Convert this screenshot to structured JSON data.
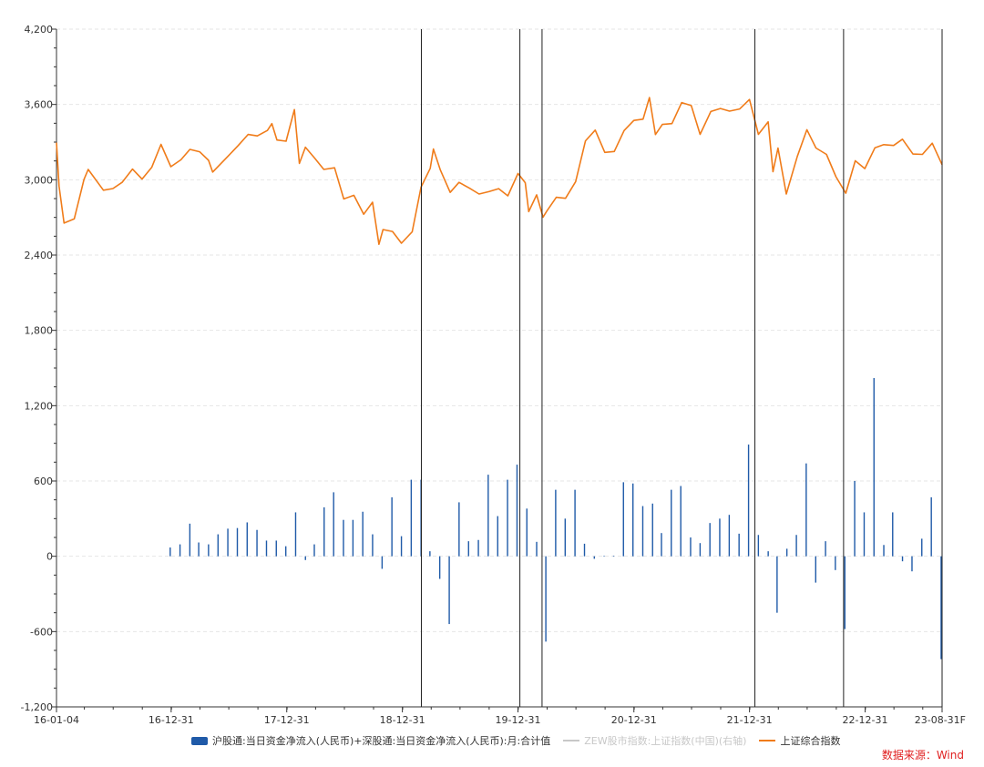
{
  "chart_data": {
    "type": "bar+line",
    "x_ticks": [
      "16-01-04",
      "16-12-31",
      "17-12-31",
      "18-12-31",
      "19-12-31",
      "20-12-31",
      "21-12-31",
      "22-12-31",
      "23-08-31F"
    ],
    "y_ticks": [
      "4,200",
      "3,600",
      "3,000",
      "2,400",
      "1,800",
      "1,200",
      "600",
      "0",
      "-600",
      "-1,200"
    ],
    "ylim": [
      -1200,
      4200
    ],
    "xlim": [
      "2016-01-04",
      "2023-08-31"
    ],
    "grid": "horizontal dashed",
    "vertical_markers": [
      "2019-03-01",
      "2020-01-06",
      "2020-03-16",
      "2022-01-17",
      "2022-10-24",
      "2023-08-31"
    ],
    "legend_position": "bottom",
    "series": [
      {
        "name": "沪股通:当日资金净流入(人民币)+深股通:当日资金净流入(人民币):月:合计值",
        "kind": "bar",
        "color": "#1f5aa8",
        "x": [
          "2016-12",
          "2017-01",
          "2017-02",
          "2017-03",
          "2017-04",
          "2017-05",
          "2017-06",
          "2017-07",
          "2017-08",
          "2017-09",
          "2017-10",
          "2017-11",
          "2017-12",
          "2018-01",
          "2018-02",
          "2018-03",
          "2018-04",
          "2018-05",
          "2018-06",
          "2018-07",
          "2018-08",
          "2018-09",
          "2018-10",
          "2018-11",
          "2018-12",
          "2019-01",
          "2019-02",
          "2019-03",
          "2019-04",
          "2019-05",
          "2019-06",
          "2019-07",
          "2019-08",
          "2019-09",
          "2019-10",
          "2019-11",
          "2019-12",
          "2020-01",
          "2020-02",
          "2020-03",
          "2020-04",
          "2020-05",
          "2020-06",
          "2020-07",
          "2020-08",
          "2020-09",
          "2020-10",
          "2020-11",
          "2020-12",
          "2021-01",
          "2021-02",
          "2021-03",
          "2021-04",
          "2021-05",
          "2021-06",
          "2021-07",
          "2021-08",
          "2021-09",
          "2021-10",
          "2021-11",
          "2021-12",
          "2022-01",
          "2022-02",
          "2022-03",
          "2022-04",
          "2022-05",
          "2022-06",
          "2022-07",
          "2022-08",
          "2022-09",
          "2022-10",
          "2022-11",
          "2022-12",
          "2023-01",
          "2023-02",
          "2023-03",
          "2023-04",
          "2023-05",
          "2023-06",
          "2023-07",
          "2023-08"
        ],
        "values": [
          70,
          95,
          260,
          110,
          95,
          175,
          220,
          225,
          270,
          210,
          125,
          125,
          80,
          350,
          -30,
          95,
          390,
          510,
          290,
          290,
          355,
          175,
          -100,
          470,
          160,
          610,
          610,
          40,
          -180,
          -540,
          430,
          120,
          130,
          650,
          320,
          610,
          730,
          380,
          115,
          -680,
          530,
          300,
          530,
          100,
          -20,
          5,
          5,
          590,
          580,
          400,
          420,
          185,
          530,
          560,
          150,
          105,
          265,
          300,
          330,
          180,
          890,
          170,
          40,
          -450,
          60,
          170,
          740,
          -210,
          120,
          -110,
          -580,
          600,
          350,
          1420,
          90,
          350,
          -40,
          -120,
          140,
          470,
          -820
        ]
      },
      {
        "name": "ZEW股市指数:上证指数(中国)(右轴)",
        "kind": "line",
        "color": "#c8c8c8",
        "values": []
      },
      {
        "name": "上证综合指数",
        "kind": "line",
        "color": "#f07c1a",
        "x": [
          "2016-01-04",
          "2016-01-12",
          "2016-01-28",
          "2016-02-29",
          "2016-03-31",
          "2016-04-13",
          "2016-05-31",
          "2016-06-30",
          "2016-07-29",
          "2016-08-31",
          "2016-09-30",
          "2016-10-31",
          "2016-11-29",
          "2016-12-30",
          "2017-01-31",
          "2017-02-28",
          "2017-03-31",
          "2017-04-28",
          "2017-05-11",
          "2017-06-30",
          "2017-07-31",
          "2017-08-31",
          "2017-09-29",
          "2017-10-31",
          "2017-11-14",
          "2017-11-30",
          "2017-12-29",
          "2018-01-24",
          "2018-02-09",
          "2018-02-28",
          "2018-03-30",
          "2018-04-27",
          "2018-05-31",
          "2018-06-29",
          "2018-07-31",
          "2018-08-31",
          "2018-09-28",
          "2018-10-18",
          "2018-10-31",
          "2018-11-30",
          "2018-12-28",
          "2019-01-31",
          "2019-02-28",
          "2019-03-29",
          "2019-04-08",
          "2019-04-30",
          "2019-05-31",
          "2019-06-28",
          "2019-07-31",
          "2019-08-30",
          "2019-09-30",
          "2019-10-31",
          "2019-11-29",
          "2019-12-31",
          "2020-01-23",
          "2020-02-03",
          "2020-02-28",
          "2020-03-19",
          "2020-03-31",
          "2020-04-30",
          "2020-05-29",
          "2020-06-30",
          "2020-07-31",
          "2020-08-31",
          "2020-09-30",
          "2020-10-30",
          "2020-11-30",
          "2020-12-31",
          "2021-01-29",
          "2021-02-18",
          "2021-03-09",
          "2021-03-31",
          "2021-04-30",
          "2021-05-31",
          "2021-06-30",
          "2021-07-28",
          "2021-08-31",
          "2021-09-30",
          "2021-10-29",
          "2021-11-30",
          "2021-12-31",
          "2022-01-28",
          "2022-02-28",
          "2022-03-15",
          "2022-03-31",
          "2022-04-26",
          "2022-05-31",
          "2022-06-30",
          "2022-07-29",
          "2022-08-31",
          "2022-09-30",
          "2022-10-31",
          "2022-11-30",
          "2022-12-30",
          "2023-01-31",
          "2023-02-28",
          "2023-03-31",
          "2023-04-28",
          "2023-05-31",
          "2023-06-30",
          "2023-07-31",
          "2023-08-31"
        ],
        "values": [
          3296,
          2950,
          2655,
          2688,
          3003,
          3082,
          2917,
          2930,
          2979,
          3085,
          3005,
          3100,
          3282,
          3104,
          3159,
          3242,
          3223,
          3155,
          3061,
          3192,
          3273,
          3361,
          3349,
          3393,
          3447,
          3317,
          3307,
          3559,
          3130,
          3259,
          3169,
          3082,
          3095,
          2847,
          2876,
          2725,
          2821,
          2486,
          2603,
          2588,
          2494,
          2585,
          2941,
          3091,
          3245,
          3078,
          2899,
          2979,
          2933,
          2886,
          2905,
          2929,
          2872,
          3050,
          2976,
          2746,
          2880,
          2702,
          2750,
          2860,
          2852,
          2985,
          3310,
          3396,
          3218,
          3225,
          3392,
          3473,
          3483,
          3655,
          3360,
          3441,
          3447,
          3615,
          3591,
          3362,
          3544,
          3568,
          3547,
          3564,
          3640,
          3362,
          3462,
          3064,
          3253,
          2886,
          3186,
          3399,
          3253,
          3202,
          3024,
          2893,
          3151,
          3089,
          3255,
          3280,
          3273,
          3323,
          3205,
          3202,
          3291,
          3120
        ]
      }
    ],
    "source": "数据来源：Wind"
  }
}
